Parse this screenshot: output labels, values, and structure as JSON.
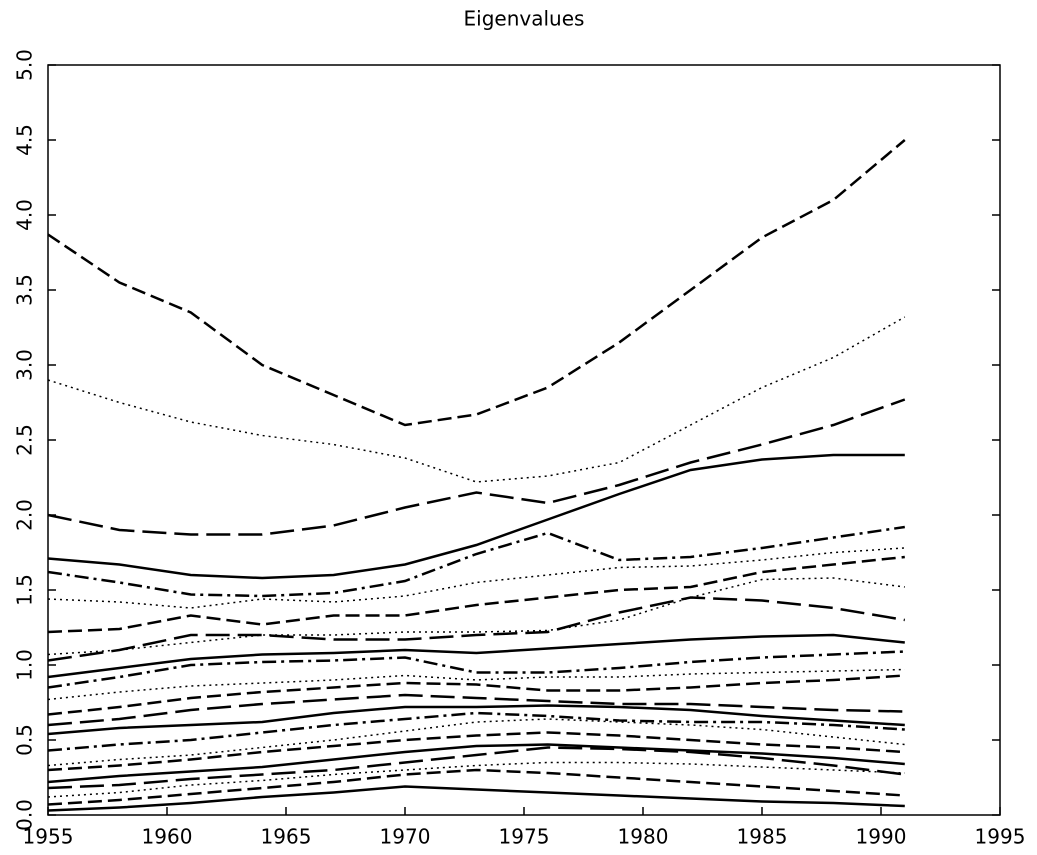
{
  "chart_data": {
    "type": "line",
    "title": "Eigenvalues",
    "x": [
      1955,
      1958,
      1961,
      1964,
      1967,
      1970,
      1973,
      1976,
      1979,
      1982,
      1985,
      1988,
      1991
    ],
    "xlim": [
      1955,
      1995
    ],
    "xticks": [
      1955,
      1960,
      1965,
      1970,
      1975,
      1980,
      1985,
      1990,
      1995
    ],
    "ylim": [
      0,
      5
    ],
    "yticks": [
      {
        "value": 0,
        "label": "0.0"
      },
      0.5,
      {
        "value": 1,
        "label": "1.0"
      },
      1.5,
      {
        "value": 2,
        "label": "2.0"
      },
      2.5,
      {
        "value": 3,
        "label": "3.0"
      },
      3.5,
      {
        "value": 4,
        "label": "4.0"
      },
      4.5,
      {
        "value": 5,
        "label": "5.0"
      }
    ],
    "grid": false,
    "series": [
      {
        "color": "#000000",
        "style": "dashed",
        "values": [
          3.87,
          3.55,
          3.35,
          3.0,
          2.8,
          2.6,
          2.67,
          2.85,
          3.15,
          3.5,
          3.85,
          4.1,
          4.5
        ]
      },
      {
        "color": "#000000",
        "style": "dotted",
        "values": [
          2.9,
          2.75,
          2.62,
          2.53,
          2.47,
          2.38,
          2.22,
          2.26,
          2.35,
          2.6,
          2.85,
          3.05,
          3.32
        ]
      },
      {
        "color": "#000000",
        "style": "longdash",
        "values": [
          2.0,
          1.9,
          1.87,
          1.87,
          1.93,
          2.05,
          2.15,
          2.08,
          2.2,
          2.35,
          2.47,
          2.6,
          2.77
        ]
      },
      {
        "color": "#000000",
        "style": "solid",
        "values": [
          1.71,
          1.67,
          1.6,
          1.58,
          1.6,
          1.67,
          1.8,
          1.97,
          2.14,
          2.3,
          2.37,
          2.4,
          2.4
        ]
      },
      {
        "color": "#000000",
        "style": "dashdot",
        "values": [
          1.62,
          1.55,
          1.47,
          1.46,
          1.48,
          1.56,
          1.74,
          1.88,
          1.7,
          1.72,
          1.78,
          1.85,
          1.92
        ]
      },
      {
        "color": "#000000",
        "style": "dotted",
        "values": [
          1.44,
          1.42,
          1.38,
          1.44,
          1.42,
          1.46,
          1.55,
          1.6,
          1.65,
          1.66,
          1.7,
          1.75,
          1.78
        ]
      },
      {
        "color": "#000000",
        "style": "dashed",
        "values": [
          1.22,
          1.24,
          1.33,
          1.27,
          1.33,
          1.33,
          1.4,
          1.45,
          1.5,
          1.52,
          1.62,
          1.67,
          1.72
        ]
      },
      {
        "color": "#000000",
        "style": "longdash",
        "values": [
          1.03,
          1.1,
          1.2,
          1.2,
          1.17,
          1.17,
          1.2,
          1.22,
          1.35,
          1.45,
          1.43,
          1.38,
          1.3
        ]
      },
      {
        "color": "#000000",
        "style": "dotted",
        "values": [
          1.07,
          1.1,
          1.15,
          1.2,
          1.2,
          1.22,
          1.22,
          1.23,
          1.3,
          1.45,
          1.57,
          1.58,
          1.52
        ]
      },
      {
        "color": "#000000",
        "style": "solid",
        "values": [
          0.92,
          0.98,
          1.04,
          1.07,
          1.08,
          1.1,
          1.08,
          1.11,
          1.14,
          1.17,
          1.19,
          1.2,
          1.15
        ]
      },
      {
        "color": "#000000",
        "style": "dashdot",
        "values": [
          0.85,
          0.92,
          1.0,
          1.02,
          1.03,
          1.05,
          0.95,
          0.95,
          0.98,
          1.02,
          1.05,
          1.07,
          1.09
        ]
      },
      {
        "color": "#000000",
        "style": "dotted",
        "values": [
          0.77,
          0.82,
          0.86,
          0.88,
          0.9,
          0.93,
          0.9,
          0.92,
          0.92,
          0.94,
          0.95,
          0.96,
          0.97
        ]
      },
      {
        "color": "#000000",
        "style": "dashed",
        "values": [
          0.67,
          0.72,
          0.78,
          0.82,
          0.85,
          0.88,
          0.87,
          0.83,
          0.83,
          0.85,
          0.88,
          0.9,
          0.93
        ]
      },
      {
        "color": "#000000",
        "style": "longdash",
        "values": [
          0.6,
          0.64,
          0.7,
          0.74,
          0.77,
          0.8,
          0.78,
          0.76,
          0.74,
          0.74,
          0.72,
          0.7,
          0.69
        ]
      },
      {
        "color": "#000000",
        "style": "solid",
        "values": [
          0.54,
          0.58,
          0.6,
          0.62,
          0.68,
          0.72,
          0.72,
          0.73,
          0.72,
          0.7,
          0.66,
          0.63,
          0.6
        ]
      },
      {
        "color": "#000000",
        "style": "dashdot",
        "values": [
          0.43,
          0.47,
          0.5,
          0.55,
          0.6,
          0.64,
          0.68,
          0.66,
          0.63,
          0.62,
          0.62,
          0.6,
          0.57
        ]
      },
      {
        "color": "#000000",
        "style": "dotted",
        "values": [
          0.33,
          0.37,
          0.4,
          0.45,
          0.5,
          0.56,
          0.62,
          0.64,
          0.62,
          0.6,
          0.57,
          0.52,
          0.47
        ]
      },
      {
        "color": "#000000",
        "style": "dashed",
        "values": [
          0.3,
          0.33,
          0.37,
          0.42,
          0.46,
          0.5,
          0.53,
          0.55,
          0.53,
          0.5,
          0.47,
          0.45,
          0.42
        ]
      },
      {
        "color": "#000000",
        "style": "solid",
        "values": [
          0.22,
          0.26,
          0.29,
          0.32,
          0.37,
          0.42,
          0.46,
          0.47,
          0.45,
          0.43,
          0.41,
          0.38,
          0.34
        ]
      },
      {
        "color": "#000000",
        "style": "longdash",
        "values": [
          0.18,
          0.2,
          0.24,
          0.27,
          0.3,
          0.35,
          0.4,
          0.45,
          0.44,
          0.42,
          0.38,
          0.33,
          0.27
        ]
      },
      {
        "color": "#000000",
        "style": "dotted",
        "values": [
          0.12,
          0.15,
          0.2,
          0.23,
          0.27,
          0.3,
          0.33,
          0.35,
          0.35,
          0.34,
          0.32,
          0.3,
          0.28
        ]
      },
      {
        "color": "#000000",
        "style": "dashed",
        "values": [
          0.07,
          0.1,
          0.14,
          0.18,
          0.22,
          0.27,
          0.3,
          0.28,
          0.25,
          0.22,
          0.19,
          0.16,
          0.13
        ]
      },
      {
        "color": "#000000",
        "style": "solid",
        "values": [
          0.03,
          0.05,
          0.08,
          0.12,
          0.15,
          0.19,
          0.17,
          0.15,
          0.13,
          0.11,
          0.09,
          0.08,
          0.06
        ]
      }
    ]
  }
}
